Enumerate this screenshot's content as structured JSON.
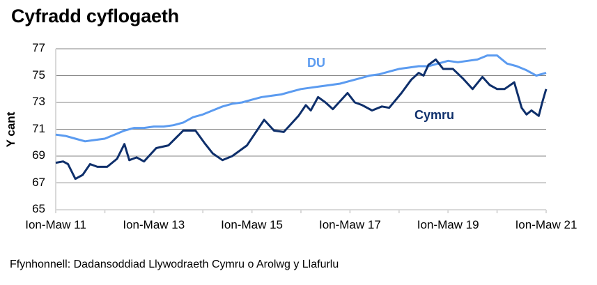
{
  "title": "Cyfradd cyflogaeth",
  "source": "Ffynhonnell: Dadansoddiad Llywodraeth Cymru o Arolwg y Llafurlu",
  "chart_data": {
    "type": "line",
    "title": "Cyfradd cyflogaeth",
    "xlabel": "",
    "ylabel": "Y cant",
    "ylim": [
      65,
      77
    ],
    "yticks": [
      65,
      67,
      69,
      71,
      73,
      75,
      77
    ],
    "xtick_labels": [
      "Ion-Maw 11",
      "Ion-Maw 13",
      "Ion-Maw 15",
      "Ion-Maw 17",
      "Ion-Maw 19",
      "Ion-Maw 21"
    ],
    "x_range_years": [
      2011,
      2021
    ],
    "grid": "horizontal",
    "legend": "inline labels",
    "series": [
      {
        "name": "DU",
        "color": "#5B9BF0",
        "x": [
          2011.0,
          2011.2,
          2011.4,
          2011.6,
          2011.8,
          2012.0,
          2012.2,
          2012.4,
          2012.6,
          2012.8,
          2013.0,
          2013.2,
          2013.4,
          2013.6,
          2013.8,
          2014.0,
          2014.2,
          2014.4,
          2014.6,
          2014.8,
          2015.0,
          2015.2,
          2015.4,
          2015.6,
          2015.8,
          2016.0,
          2016.2,
          2016.4,
          2016.6,
          2016.8,
          2017.0,
          2017.2,
          2017.4,
          2017.6,
          2017.8,
          2018.0,
          2018.2,
          2018.4,
          2018.6,
          2018.8,
          2019.0,
          2019.2,
          2019.4,
          2019.6,
          2019.8,
          2020.0,
          2020.2,
          2020.4,
          2020.6,
          2020.8,
          2021.0
        ],
        "values": [
          70.6,
          70.5,
          70.3,
          70.1,
          70.2,
          70.3,
          70.6,
          70.9,
          71.1,
          71.1,
          71.2,
          71.2,
          71.3,
          71.5,
          71.9,
          72.1,
          72.4,
          72.7,
          72.9,
          73.0,
          73.2,
          73.4,
          73.5,
          73.6,
          73.8,
          74.0,
          74.1,
          74.2,
          74.3,
          74.4,
          74.6,
          74.8,
          75.0,
          75.1,
          75.3,
          75.5,
          75.6,
          75.7,
          75.7,
          75.9,
          76.1,
          76.0,
          76.1,
          76.2,
          76.5,
          76.5,
          75.9,
          75.7,
          75.4,
          75.0,
          75.2
        ]
      },
      {
        "name": "Cymru",
        "color": "#0E2F6B",
        "x": [
          2011.0,
          2011.15,
          2011.25,
          2011.4,
          2011.55,
          2011.7,
          2011.85,
          2012.05,
          2012.25,
          2012.4,
          2012.5,
          2012.65,
          2012.8,
          2013.05,
          2013.3,
          2013.6,
          2013.85,
          2014.05,
          2014.2,
          2014.4,
          2014.6,
          2014.9,
          2015.25,
          2015.45,
          2015.65,
          2015.95,
          2016.1,
          2016.2,
          2016.35,
          2016.5,
          2016.65,
          2016.95,
          2017.1,
          2017.25,
          2017.45,
          2017.65,
          2017.8,
          2018.05,
          2018.25,
          2018.4,
          2018.5,
          2018.6,
          2018.75,
          2018.9,
          2019.1,
          2019.3,
          2019.5,
          2019.7,
          2019.85,
          2020.0,
          2020.15,
          2020.35,
          2020.5,
          2020.6,
          2020.7,
          2020.85,
          2020.92,
          2021.0
        ],
        "values": [
          68.5,
          68.6,
          68.4,
          67.3,
          67.6,
          68.4,
          68.2,
          68.2,
          68.8,
          69.9,
          68.7,
          68.9,
          68.6,
          69.6,
          69.8,
          70.9,
          70.9,
          69.9,
          69.2,
          68.7,
          69.0,
          69.8,
          71.7,
          70.9,
          70.8,
          72.0,
          72.8,
          72.4,
          73.4,
          73.0,
          72.5,
          73.7,
          73.0,
          72.8,
          72.4,
          72.7,
          72.6,
          73.7,
          74.7,
          75.2,
          75.0,
          75.8,
          76.2,
          75.5,
          75.5,
          74.8,
          74.0,
          74.9,
          74.3,
          74.0,
          74.0,
          74.5,
          72.6,
          72.1,
          72.4,
          72.0,
          73.0,
          74.0
        ]
      }
    ],
    "annotations": [
      {
        "text": "DU",
        "x": 2016.1,
        "y": 76.0
      },
      {
        "text": "Cymru",
        "x": 2018.3,
        "y": 73.1
      }
    ]
  }
}
